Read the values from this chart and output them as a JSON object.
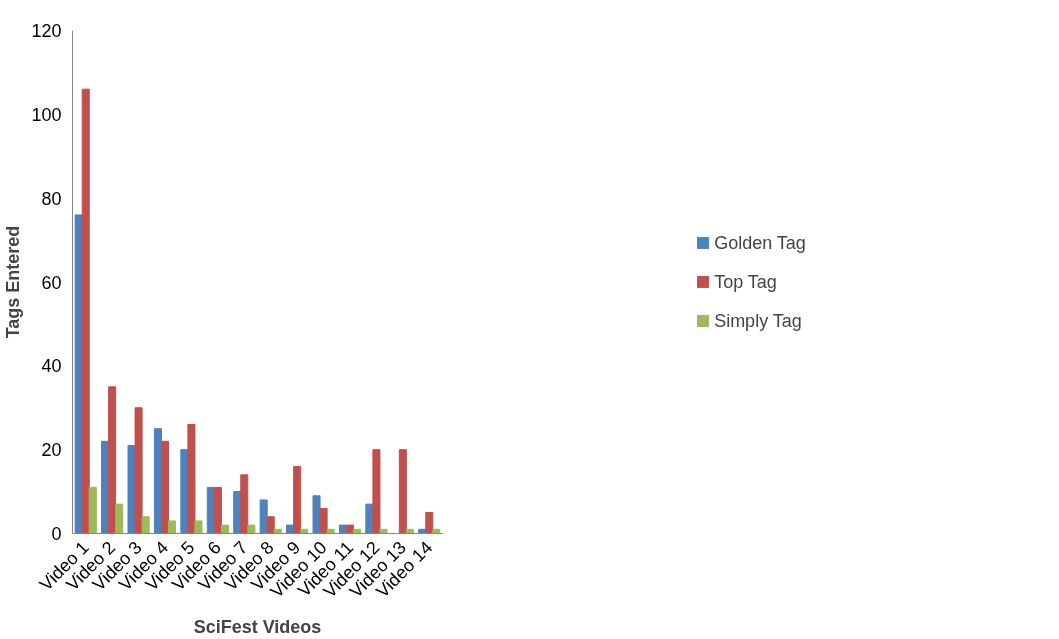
{
  "chart_data": {
    "type": "bar",
    "xlabel": "SciFest Videos",
    "ylabel": "Tags Entered",
    "categories": [
      "Video 1",
      "Video 2",
      "Video 3",
      "Video 4",
      "Video 5",
      "Video 6",
      "Video 7",
      "Video 8",
      "Video 9",
      "Video 10",
      "Video 11",
      "Video 12",
      "Video 13",
      "Video 14"
    ],
    "series": [
      {
        "name": "Golden Tag",
        "color": "#4f81bd",
        "values": [
          76,
          22,
          21,
          25,
          20,
          11,
          10,
          8,
          2,
          9,
          2,
          7,
          0,
          1
        ]
      },
      {
        "name": "Top Tag",
        "color": "#c0504d",
        "values": [
          106,
          35,
          30,
          22,
          26,
          11,
          14,
          4,
          16,
          6,
          2,
          20,
          20,
          5
        ]
      },
      {
        "name": "Simply Tag",
        "color": "#9bbb59",
        "values": [
          11,
          7,
          4,
          3,
          3,
          2,
          2,
          1,
          1,
          1,
          1,
          1,
          1,
          1
        ]
      }
    ],
    "ylim": [
      0,
      120
    ],
    "yticks": [
      0,
      20,
      40,
      60,
      80,
      100,
      120
    ],
    "grid": false,
    "legend": "right"
  }
}
